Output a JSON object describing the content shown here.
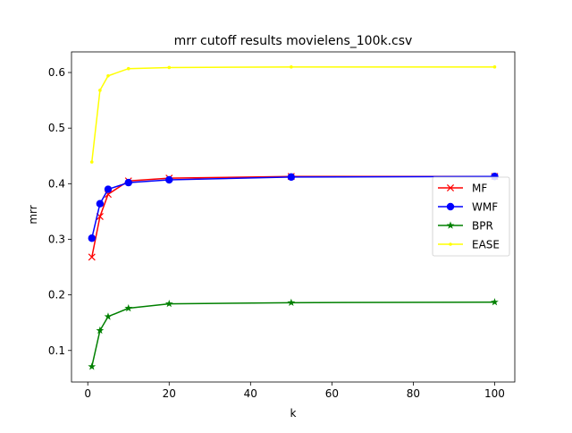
{
  "chart_data": {
    "type": "line",
    "title": "mrr cutoff results movielens_100k.csv",
    "xlabel": "k",
    "ylabel": "mrr",
    "xlim": [
      -4.0,
      104.95
    ],
    "ylim": [
      0.0433,
      0.6371
    ],
    "xticks": [
      0,
      20,
      40,
      60,
      80,
      100
    ],
    "xtick_labels": [
      "0",
      "20",
      "40",
      "60",
      "80",
      "100"
    ],
    "yticks": [
      0.1,
      0.2,
      0.3,
      0.4,
      0.5,
      0.6
    ],
    "ytick_labels": [
      "0.1",
      "0.2",
      "0.3",
      "0.4",
      "0.5",
      "0.6"
    ],
    "grid": false,
    "legend_position": "center-right",
    "x": [
      1,
      3,
      5,
      10,
      20,
      50,
      100
    ],
    "series": [
      {
        "name": "MF",
        "color": "#ff0000",
        "marker": "x",
        "values": [
          0.268,
          0.341,
          0.381,
          0.405,
          0.41,
          0.413,
          0.413
        ]
      },
      {
        "name": "WMF",
        "color": "#0000ff",
        "marker": "o",
        "values": [
          0.302,
          0.364,
          0.39,
          0.402,
          0.407,
          0.412,
          0.413
        ]
      },
      {
        "name": "BPR",
        "color": "#008000",
        "marker": "star",
        "values": [
          0.071,
          0.136,
          0.161,
          0.176,
          0.184,
          0.186,
          0.187
        ]
      },
      {
        "name": "EASE",
        "color": "#ffff00",
        "marker": "dot",
        "values": [
          0.439,
          0.568,
          0.594,
          0.607,
          0.609,
          0.61,
          0.61
        ]
      }
    ]
  }
}
